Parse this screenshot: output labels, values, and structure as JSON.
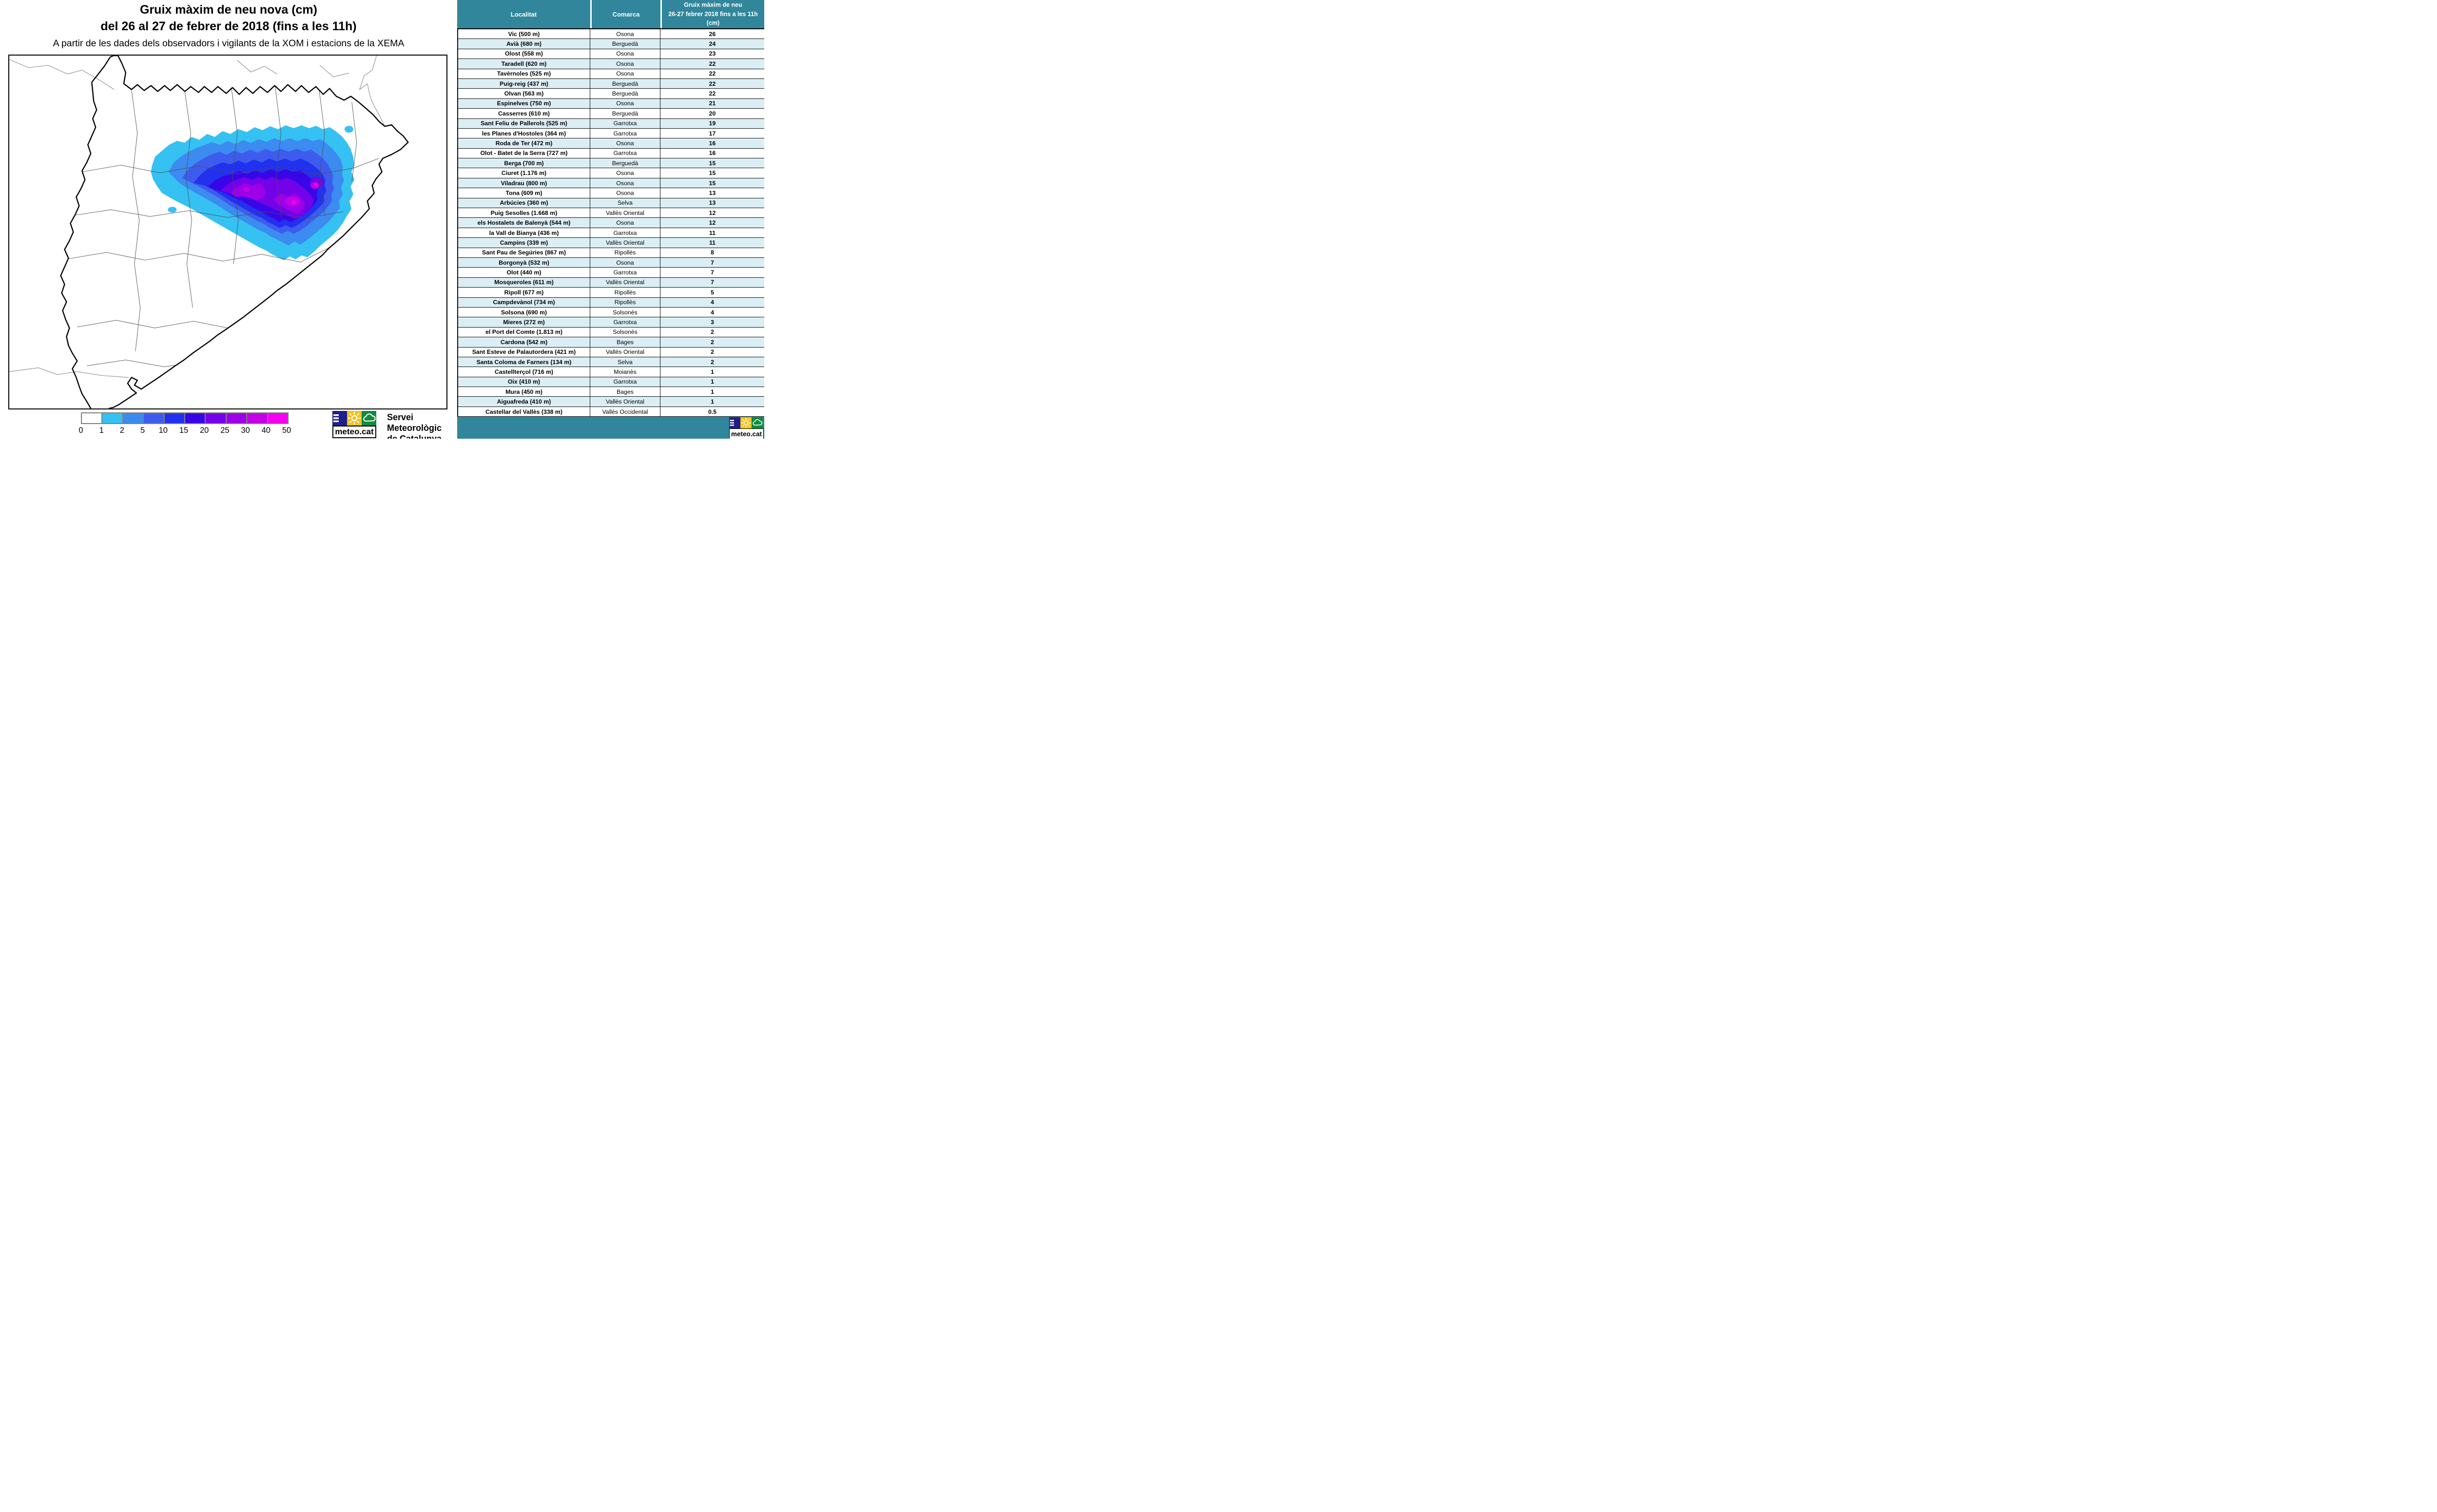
{
  "title": {
    "line1": "Gruix màxim de neu nova (cm)",
    "line2": "del 26 al 27 de febrer de 2018 (fins a les 11h)",
    "subtitle": "A partir de les dades dels observadors i vigilants de la XOM i estacions de la XEMA"
  },
  "legend": {
    "labels": [
      "0",
      "1",
      "2",
      "5",
      "10",
      "15",
      "20",
      "25",
      "30",
      "40",
      "50"
    ],
    "colors": [
      "#FFFFFF",
      "#35C1F2",
      "#3B8BF0",
      "#3D5CEE",
      "#2231EE",
      "#3805E8",
      "#7302E8",
      "#9D00E8",
      "#C400E8",
      "#F500F0"
    ]
  },
  "branding": {
    "logo_text": "meteo.cat",
    "org_line1": "Servei Meteorològic",
    "org_line2": "de Catalunya",
    "logo_navy": "#201E8C",
    "logo_yellow": "#F2C31B",
    "logo_green": "#128A3E"
  },
  "table": {
    "header_localitat": "Localitat",
    "header_comarca": "Comarca",
    "header_value_lines": [
      "Gruix màxim de neu",
      "26-27 febrer 2018 fins a les 11h",
      "(cm)"
    ],
    "rows": [
      [
        "Vic (500 m)",
        "Osona",
        "26"
      ],
      [
        "Avià (680 m)",
        "Berguedà",
        "24"
      ],
      [
        "Olost (558 m)",
        "Osona",
        "23"
      ],
      [
        "Taradell (620 m)",
        "Osona",
        "22"
      ],
      [
        "Tavèrnoles (525 m)",
        "Osona",
        "22"
      ],
      [
        "Puig-reig (437 m)",
        "Berguedà",
        "22"
      ],
      [
        "Olvan (563 m)",
        "Berguedà",
        "22"
      ],
      [
        "Espinelves (750 m)",
        "Osona",
        "21"
      ],
      [
        "Casserres (610 m)",
        "Berguedà",
        "20"
      ],
      [
        "Sant Feliu de Pallerols (525 m)",
        "Garrotxa",
        "19"
      ],
      [
        "les Planes d'Hostoles (364 m)",
        "Garrotxa",
        "17"
      ],
      [
        "Roda de Ter (472 m)",
        "Osona",
        "16"
      ],
      [
        "Olot - Batet de la Serra (727 m)",
        "Garrotxa",
        "16"
      ],
      [
        "Berga (700 m)",
        "Berguedà",
        "15"
      ],
      [
        "Ciuret (1.176 m)",
        "Osona",
        "15"
      ],
      [
        "Viladrau (800 m)",
        "Osona",
        "15"
      ],
      [
        "Tona (609 m)",
        "Osona",
        "13"
      ],
      [
        "Arbúcies (360 m)",
        "Selva",
        "13"
      ],
      [
        "Puig Sesolles (1.668 m)",
        "Vallès Oriental",
        "12"
      ],
      [
        "els Hostalets de Balenyà (544 m)",
        "Osona",
        "12"
      ],
      [
        "la Vall de Bianya (436 m)",
        "Garrotxa",
        "11"
      ],
      [
        "Campins (339 m)",
        "Vallès Oriental",
        "11"
      ],
      [
        "Sant Pau de Segúries (867 m)",
        "Ripollès",
        "8"
      ],
      [
        "Borgonyà (532 m)",
        "Osona",
        "7"
      ],
      [
        "Olot (440 m)",
        "Garrotxa",
        "7"
      ],
      [
        "Mosqueroles (611 m)",
        "Vallès Oriental",
        "7"
      ],
      [
        "Ripoll (677 m)",
        "Ripollès",
        "5"
      ],
      [
        "Campdevànol (734 m)",
        "Ripollès",
        "4"
      ],
      [
        "Solsona (690 m)",
        "Solsonès",
        "4"
      ],
      [
        "Mieres (272 m)",
        "Garrotxa",
        "3"
      ],
      [
        "el Port del Comte (1.813 m)",
        "Solsonès",
        "2"
      ],
      [
        "Cardona (542 m)",
        "Bages",
        "2"
      ],
      [
        "Sant Esteve de Palautordera (421 m)",
        "Vallès Oriental",
        "2"
      ],
      [
        "Santa Coloma de Farners (134 m)",
        "Selva",
        "2"
      ],
      [
        "Castellterçol (716 m)",
        "Moianès",
        "1"
      ],
      [
        "Oix (410 m)",
        "Garrotxa",
        "1"
      ],
      [
        "Mura (450 m)",
        "Bages",
        "1"
      ],
      [
        "Aiguafreda (410 m)",
        "Vallès Oriental",
        "1"
      ],
      [
        "Castellar del Vallès (338 m)",
        "Vallès Occidental",
        "0.5"
      ]
    ]
  },
  "colors": {
    "header_teal": "#31869B",
    "row_alt": "#DAEEF3",
    "footer_teal": "#31869B",
    "legend_border_gray": "#7F7F7F"
  }
}
